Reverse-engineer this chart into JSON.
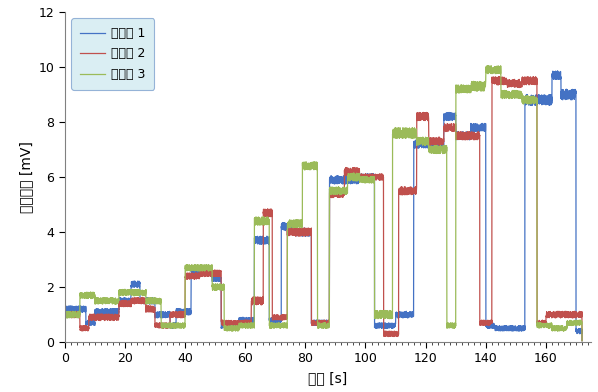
{
  "title": "",
  "xlabel": "시간 [s]",
  "ylabel": "원토전압 [mV]",
  "xlim": [
    0,
    175
  ],
  "ylim": [
    0,
    12
  ],
  "xticks": [
    0,
    20,
    40,
    60,
    80,
    100,
    120,
    140,
    160
  ],
  "yticks": [
    0,
    2,
    4,
    6,
    8,
    10,
    12
  ],
  "legend": [
    "시험체 1",
    "시험체 2",
    "시험체 3"
  ],
  "colors": [
    "#4472C4",
    "#C0504D",
    "#9BBB59"
  ],
  "background": "#FFFFFF",
  "legend_box_color": "#DAEEF3",
  "legend_edge_color": "#95B3D7"
}
